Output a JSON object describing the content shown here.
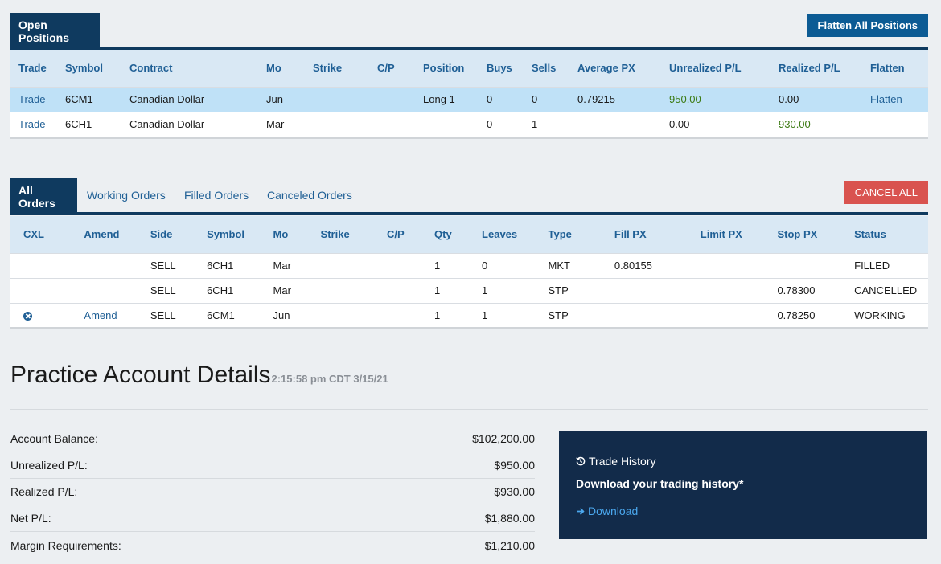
{
  "positions": {
    "tab_label": "Open Positions",
    "flatten_all_label": "Flatten All Positions",
    "columns": [
      "Trade",
      "Symbol",
      "Contract",
      "Mo",
      "Strike",
      "C/P",
      "Position",
      "Buys",
      "Sells",
      "Average PX",
      "Unrealized P/L",
      "Realized P/L",
      "Flatten"
    ],
    "rows": [
      {
        "trade": "Trade",
        "symbol": "6CM1",
        "contract": "Canadian Dollar",
        "mo": "Jun",
        "strike": "",
        "cp": "",
        "position": "Long 1",
        "buys": "0",
        "sells": "0",
        "avg_px": "0.79215",
        "unrealized": "950.00",
        "realized": "0.00",
        "flatten": "Flatten"
      },
      {
        "trade": "Trade",
        "symbol": "6CH1",
        "contract": "Canadian Dollar",
        "mo": "Mar",
        "strike": "",
        "cp": "",
        "position": "",
        "buys": "0",
        "sells": "1",
        "avg_px": "",
        "unrealized": "0.00",
        "realized": "930.00",
        "flatten": ""
      }
    ]
  },
  "orders": {
    "tabs": {
      "all": "All Orders",
      "working": "Working Orders",
      "filled": "Filled Orders",
      "canceled": "Canceled Orders"
    },
    "cancel_all_label": "CANCEL ALL",
    "columns": [
      "CXL",
      "Amend",
      "Side",
      "Symbol",
      "Mo",
      "Strike",
      "C/P",
      "Qty",
      "Leaves",
      "Type",
      "Fill PX",
      "Limit PX",
      "Stop PX",
      "Status"
    ],
    "rows": [
      {
        "cxl": "",
        "amend": "",
        "side": "SELL",
        "symbol": "6CH1",
        "mo": "Mar",
        "strike": "",
        "cp": "",
        "qty": "1",
        "leaves": "0",
        "type": "MKT",
        "fill_px": "0.80155",
        "limit_px": "",
        "stop_px": "",
        "status": "FILLED"
      },
      {
        "cxl": "",
        "amend": "",
        "side": "SELL",
        "symbol": "6CH1",
        "mo": "Mar",
        "strike": "",
        "cp": "",
        "qty": "1",
        "leaves": "1",
        "type": "STP",
        "fill_px": "",
        "limit_px": "",
        "stop_px": "0.78300",
        "status": "CANCELLED"
      },
      {
        "cxl": "cancel-icon",
        "amend": "Amend",
        "side": "SELL",
        "symbol": "6CM1",
        "mo": "Jun",
        "strike": "",
        "cp": "",
        "qty": "1",
        "leaves": "1",
        "type": "STP",
        "fill_px": "",
        "limit_px": "",
        "stop_px": "0.78250",
        "status": "WORKING"
      }
    ]
  },
  "account": {
    "title": "Practice Account Details",
    "timestamp": "2:15:58 pm CDT 3/15/21",
    "rows": [
      {
        "label": "Account Balance:",
        "value": "$102,200.00"
      },
      {
        "label": "Unrealized P/L:",
        "value": "$950.00"
      },
      {
        "label": "Realized P/L:",
        "value": "$930.00"
      },
      {
        "label": "Net P/L:",
        "value": "$1,880.00"
      },
      {
        "label": "Margin Requirements:",
        "value": "$1,210.00"
      }
    ]
  },
  "trade_history": {
    "title": "Trade History",
    "subtitle": "Download your trading history*",
    "download_label": "Download",
    "icons": {
      "title": "history-icon",
      "download": "arrow-right-icon"
    }
  },
  "colors": {
    "navy": "#0f3a5f",
    "header_bg": "#d9e8f4",
    "highlight_row": "#bfe1f7",
    "link": "#1f5f95",
    "positive": "#3b7a12",
    "cancel": "#d9534f",
    "history_bg": "#122b4a",
    "history_link": "#4ba8ee"
  }
}
